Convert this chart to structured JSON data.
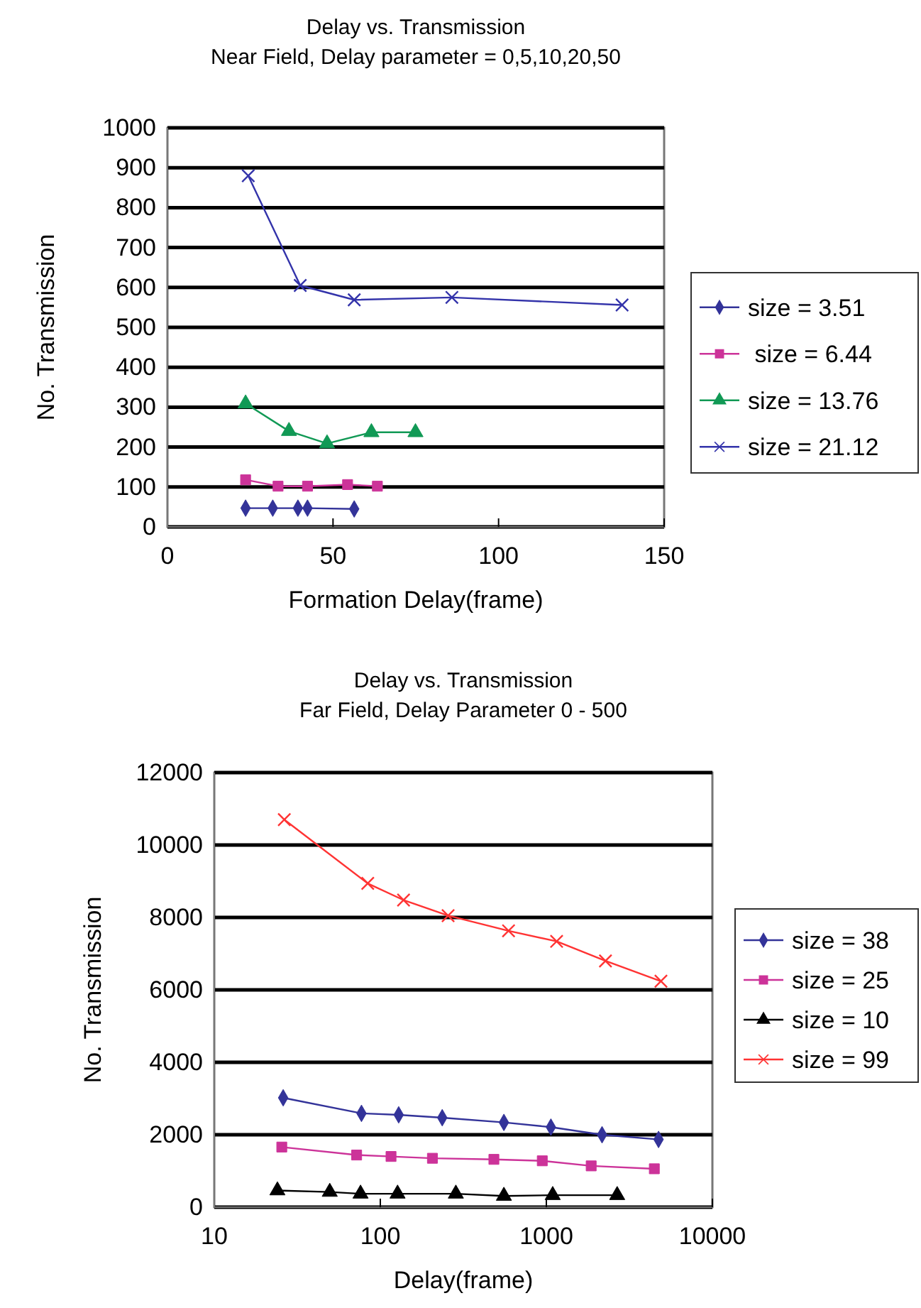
{
  "chart_data": [
    {
      "type": "line",
      "title": "Delay vs. Transmission",
      "subtitle": "Near Field, Delay parameter = 0,5,10,20,50",
      "xlabel": "Formation Delay(frame)",
      "ylabel": "No. Transmission",
      "xlim": [
        0,
        150
      ],
      "xticks": [
        0,
        50,
        100,
        150
      ],
      "ylim": [
        0,
        1000
      ],
      "yticks": [
        0,
        100,
        200,
        300,
        400,
        500,
        600,
        700,
        800,
        900,
        1000
      ],
      "grid": "y",
      "legend": "right",
      "series": [
        {
          "name": "size = 3.51",
          "color": "#333399",
          "marker": "diamond",
          "x": [
            23.6,
            31.8,
            39.4,
            42.3,
            56.4
          ],
          "values": [
            47,
            47,
            47,
            47,
            45
          ]
        },
        {
          "name": " size = 6.44",
          "color": "#cc3399",
          "marker": "square",
          "x": [
            23.6,
            33.4,
            42.3,
            54.4,
            63.4
          ],
          "values": [
            118,
            102,
            102,
            106,
            102
          ]
        },
        {
          "name": "size = 13.76",
          "color": "#119955",
          "marker": "triangle",
          "x": [
            23.6,
            36.7,
            48.2,
            61.6,
            74.9
          ],
          "values": [
            309,
            240,
            209,
            237,
            237
          ]
        },
        {
          "name": "size = 21.12",
          "color": "#3333aa",
          "marker": "cross",
          "x": [
            24.4,
            40.1,
            56.4,
            85.9,
            137.3
          ],
          "values": [
            880,
            605,
            569,
            575,
            556
          ]
        }
      ]
    },
    {
      "type": "line",
      "title": "Delay vs. Transmission",
      "subtitle": "Far Field,  Delay Parameter 0 - 500",
      "xlabel": "Delay(frame)",
      "ylabel": "No. Transmission",
      "log": "x",
      "xlim": [
        10,
        10000
      ],
      "xticks": [
        10,
        100,
        1000,
        10000
      ],
      "ylim": [
        0,
        12000
      ],
      "yticks": [
        0,
        2000,
        4000,
        6000,
        8000,
        10000,
        12000
      ],
      "grid": "y",
      "legend": "right",
      "series": [
        {
          "name": "size = 38",
          "color": "#333399",
          "marker": "diamond",
          "x": [
            26,
            77,
            129,
            236,
            555,
            1065,
            2165,
            4740
          ],
          "values": [
            3020,
            2590,
            2550,
            2470,
            2340,
            2210,
            2000,
            1870
          ]
        },
        {
          "name": "size = 25",
          "color": "#cc3399",
          "marker": "square",
          "x": [
            25.5,
            72,
            116,
            206,
            483,
            945,
            1862,
            4470
          ],
          "values": [
            1660,
            1440,
            1400,
            1350,
            1320,
            1280,
            1140,
            1060
          ]
        },
        {
          "name": "size = 10",
          "color": "#000000",
          "marker": "triangle",
          "x": [
            24,
            49.6,
            76,
            127,
            285,
            555,
            1092,
            2670
          ],
          "values": [
            460,
            420,
            370,
            370,
            370,
            310,
            330,
            330
          ]
        },
        {
          "name": "size = 99",
          "color": "#ff3333",
          "marker": "cross",
          "x": [
            26.4,
            84,
            138,
            256,
            592,
            1153,
            2270,
            4900
          ],
          "values": [
            10700,
            8940,
            8480,
            8050,
            7630,
            7340,
            6800,
            6240
          ]
        }
      ]
    }
  ]
}
